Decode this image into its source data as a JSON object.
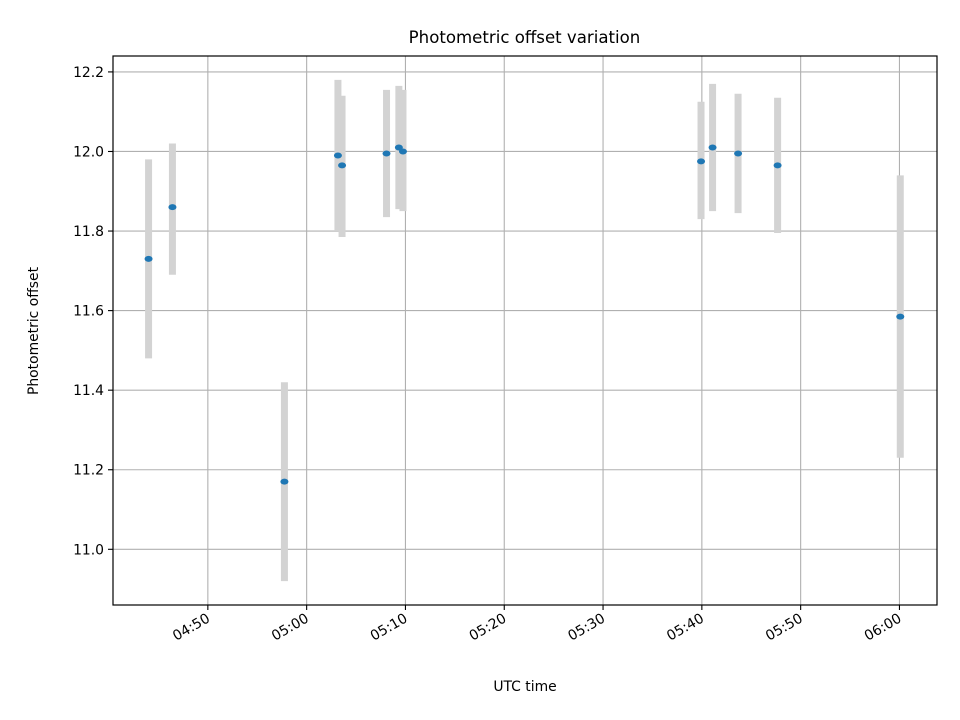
{
  "chart_data": {
    "type": "scatter",
    "title": "Photometric offset variation",
    "xlabel": "UTC time",
    "ylabel": "Photometric offset",
    "x_range_minutes": [
      "04:40.4",
      "06:03.8"
    ],
    "ylim": [
      10.86,
      12.24
    ],
    "grid": true,
    "x_ticks": [
      "04:50",
      "05:00",
      "05:10",
      "05:20",
      "05:30",
      "05:40",
      "05:50",
      "06:00"
    ],
    "y_ticks": [
      "11.0",
      "11.2",
      "11.4",
      "11.6",
      "11.8",
      "12.0",
      "12.2"
    ],
    "point_color": "#1f77b4",
    "errorbar_color": "#d3d3d3",
    "points": [
      {
        "time": "04:44:00",
        "y": 11.73,
        "err_low": 11.48,
        "err_high": 11.98
      },
      {
        "time": "04:46:25",
        "y": 11.86,
        "err_low": 11.69,
        "err_high": 12.02
      },
      {
        "time": "04:57:45",
        "y": 11.17,
        "err_low": 10.92,
        "err_high": 11.42
      },
      {
        "time": "05:03:10",
        "y": 11.99,
        "err_low": 11.8,
        "err_high": 12.18
      },
      {
        "time": "05:03:35",
        "y": 11.965,
        "err_low": 11.785,
        "err_high": 12.14
      },
      {
        "time": "05:08:05",
        "y": 11.995,
        "err_low": 11.835,
        "err_high": 12.155
      },
      {
        "time": "05:09:20",
        "y": 12.01,
        "err_low": 11.855,
        "err_high": 12.165
      },
      {
        "time": "05:09:45",
        "y": 12.0,
        "err_low": 11.85,
        "err_high": 12.155
      },
      {
        "time": "05:39:55",
        "y": 11.975,
        "err_low": 11.83,
        "err_high": 12.125
      },
      {
        "time": "05:41:05",
        "y": 12.01,
        "err_low": 11.85,
        "err_high": 12.17
      },
      {
        "time": "05:43:40",
        "y": 11.995,
        "err_low": 11.845,
        "err_high": 12.145
      },
      {
        "time": "05:47:40",
        "y": 11.965,
        "err_low": 11.795,
        "err_high": 12.135
      },
      {
        "time": "06:00:05",
        "y": 11.585,
        "err_low": 11.23,
        "err_high": 11.94
      }
    ]
  }
}
